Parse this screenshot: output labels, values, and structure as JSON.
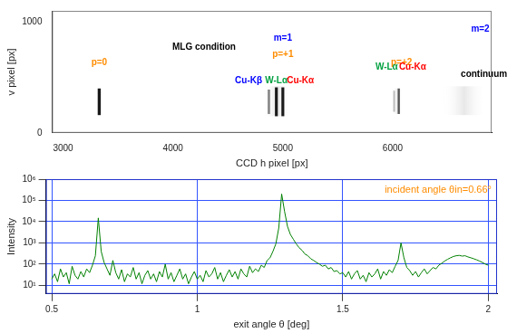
{
  "chart_data": [
    {
      "type": "image",
      "xlabel": "CCD h pixel [px]",
      "ylabel": "v pixel [px]",
      "xlim": [
        2900,
        6900
      ],
      "xticks": [
        3000,
        4000,
        5000,
        6000
      ],
      "ylim": [
        0,
        1100
      ],
      "yticks": [
        0,
        1000
      ],
      "grid": false,
      "bands": [
        {
          "h": [
            4820,
            5080
          ],
          "v": [
            150,
            420
          ],
          "color": "#e6e6e6"
        },
        {
          "h": [
            5990,
            6090
          ],
          "v": [
            170,
            400
          ],
          "color": "#ededed"
        },
        {
          "h": [
            6450,
            6850
          ],
          "v": [
            160,
            420
          ],
          "color": "#e8e8e8"
        },
        {
          "h": [
            3315,
            3343
          ],
          "v": [
            160,
            400
          ],
          "color": "#1a1a1a"
        },
        {
          "h": [
            4862,
            4884
          ],
          "v": [
            170,
            390
          ],
          "color": "#888888"
        },
        {
          "h": [
            4928,
            4954
          ],
          "v": [
            150,
            410
          ],
          "color": "#1a1a1a"
        },
        {
          "h": [
            4987,
            5013
          ],
          "v": [
            150,
            410
          ],
          "color": "#1a1a1a"
        },
        {
          "h": [
            6005,
            6021
          ],
          "v": [
            190,
            380
          ],
          "color": "#bbbbbb"
        },
        {
          "h": [
            6045,
            6065
          ],
          "v": [
            170,
            400
          ],
          "color": "#555555"
        }
      ],
      "annotations": [
        {
          "text": "p=0",
          "h": 3329,
          "v": 631,
          "color": "#ff8c00"
        },
        {
          "text": "MLG condition",
          "h": 4283,
          "v": 770,
          "color": "#000000"
        },
        {
          "text": "m=1",
          "h": 5000,
          "v": 852,
          "color": "#0000ff"
        },
        {
          "text": "p=+1",
          "h": 5000,
          "v": 705,
          "color": "#ff8c00"
        },
        {
          "text": "p=+2",
          "h": 6080,
          "v": 631,
          "color": "#ff8c00"
        },
        {
          "text": "m=2",
          "h": 6797,
          "v": 934,
          "color": "#0000ff"
        },
        {
          "text": "Cu-Kβ",
          "h": 4688,
          "v": 470,
          "color": "#0000ff"
        },
        {
          "text": "W-Lα",
          "h": 4941,
          "v": 470,
          "color": "#00a040"
        },
        {
          "text": "Cu-Kα",
          "h": 5160,
          "v": 470,
          "color": "#ff0000"
        },
        {
          "text": "W-Lα",
          "h": 5945,
          "v": 590,
          "color": "#00a040"
        },
        {
          "text": "Cu-Kα",
          "h": 6181,
          "v": 590,
          "color": "#ff0000"
        },
        {
          "text": "continuum",
          "h": 6831,
          "v": 525,
          "color": "#000000"
        }
      ]
    },
    {
      "type": "line",
      "xlabel": "exit angle θ [deg]",
      "ylabel": "Intensity",
      "log": "y",
      "xlim": [
        0.48,
        2.03
      ],
      "xticks": [
        0.5,
        1,
        1.5,
        2
      ],
      "ylim": [
        4,
        1000000
      ],
      "yticks": [
        {
          "value": 10,
          "label": "10¹"
        },
        {
          "value": 100,
          "label": "10²"
        },
        {
          "value": 1000,
          "label": "10³"
        },
        {
          "value": 10000,
          "label": "10⁴"
        },
        {
          "value": 100000,
          "label": "10⁵"
        },
        {
          "value": 1000000,
          "label": "10⁶"
        }
      ],
      "grid": true,
      "color": "#008000",
      "annotations": [
        {
          "text": "incident angle θin=0.66°",
          "color": "#ff8c00"
        }
      ],
      "x": [
        0.5,
        0.51,
        0.52,
        0.53,
        0.54,
        0.55,
        0.56,
        0.57,
        0.58,
        0.59,
        0.6,
        0.61,
        0.62,
        0.63,
        0.64,
        0.65,
        0.66,
        0.67,
        0.68,
        0.69,
        0.7,
        0.71,
        0.72,
        0.73,
        0.74,
        0.75,
        0.76,
        0.77,
        0.78,
        0.79,
        0.8,
        0.81,
        0.82,
        0.83,
        0.84,
        0.85,
        0.86,
        0.87,
        0.88,
        0.89,
        0.9,
        0.91,
        0.92,
        0.93,
        0.94,
        0.95,
        0.96,
        0.97,
        0.98,
        0.99,
        1.0,
        1.01,
        1.02,
        1.03,
        1.04,
        1.05,
        1.06,
        1.07,
        1.08,
        1.09,
        1.1,
        1.11,
        1.12,
        1.13,
        1.14,
        1.15,
        1.16,
        1.17,
        1.18,
        1.19,
        1.2,
        1.21,
        1.22,
        1.23,
        1.24,
        1.25,
        1.26,
        1.27,
        1.28,
        1.29,
        1.3,
        1.31,
        1.32,
        1.33,
        1.34,
        1.35,
        1.36,
        1.37,
        1.38,
        1.39,
        1.4,
        1.41,
        1.42,
        1.43,
        1.44,
        1.45,
        1.46,
        1.47,
        1.48,
        1.49,
        1.5,
        1.51,
        1.52,
        1.53,
        1.54,
        1.55,
        1.56,
        1.57,
        1.58,
        1.59,
        1.6,
        1.61,
        1.62,
        1.63,
        1.64,
        1.65,
        1.66,
        1.67,
        1.68,
        1.69,
        1.7,
        1.71,
        1.72,
        1.73,
        1.74,
        1.75,
        1.76,
        1.77,
        1.78,
        1.79,
        1.8,
        1.81,
        1.82,
        1.83,
        1.84,
        1.85,
        1.86,
        1.87,
        1.88,
        1.89,
        1.9,
        1.91,
        1.92,
        1.93,
        1.94,
        1.95,
        1.96,
        1.97,
        1.98,
        1.99,
        2.0
      ],
      "values": [
        20,
        35,
        15,
        60,
        25,
        40,
        12,
        80,
        30,
        20,
        45,
        25,
        60,
        40,
        90,
        250,
        15000,
        400,
        120,
        60,
        30,
        150,
        40,
        20,
        55,
        15,
        35,
        25,
        70,
        20,
        40,
        12,
        30,
        50,
        20,
        35,
        15,
        45,
        25,
        100,
        20,
        40,
        15,
        30,
        60,
        20,
        35,
        12,
        25,
        45,
        20,
        30,
        15,
        50,
        25,
        35,
        70,
        20,
        40,
        15,
        30,
        55,
        25,
        45,
        20,
        60,
        35,
        25,
        80,
        40,
        60,
        45,
        90,
        70,
        150,
        200,
        400,
        900,
        5000,
        200000,
        30000,
        6000,
        2500,
        1500,
        900,
        600,
        450,
        300,
        250,
        180,
        150,
        120,
        100,
        80,
        90,
        60,
        70,
        45,
        50,
        35,
        40,
        25,
        45,
        20,
        35,
        50,
        20,
        30,
        15,
        40,
        25,
        35,
        60,
        20,
        45,
        30,
        55,
        40,
        80,
        150,
        1000,
        200,
        70,
        50,
        30,
        45,
        25,
        40,
        60,
        35,
        50,
        70,
        60,
        90,
        110,
        140,
        170,
        200,
        230,
        250,
        260,
        240,
        250,
        220,
        200,
        180,
        160,
        140,
        120,
        100,
        90
      ]
    }
  ]
}
